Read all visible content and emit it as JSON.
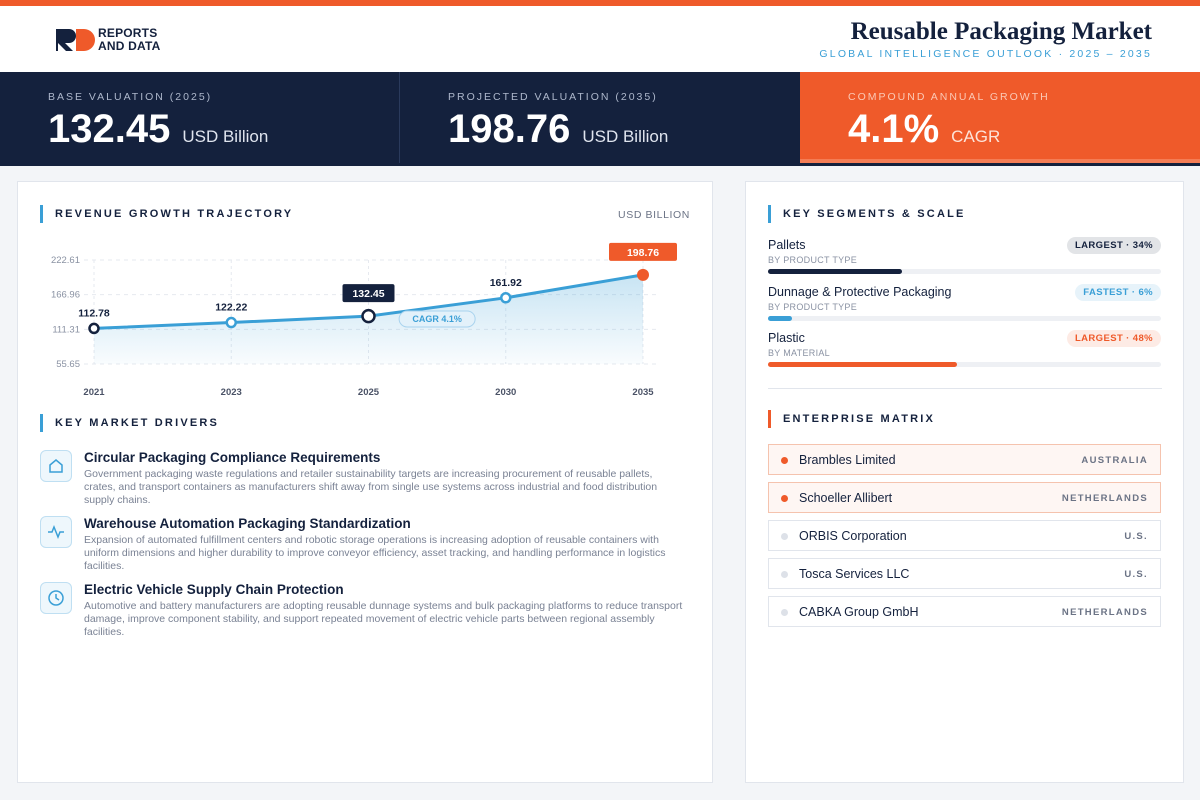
{
  "header": {
    "logo": [
      "REPORTS",
      "AND DATA"
    ],
    "title": "Reusable Packaging Market",
    "subtitle": "GLOBAL INTELLIGENCE OUTLOOK · 2025 – 2035"
  },
  "kpis": [
    {
      "label": "BASE VALUATION (2025)",
      "value": 132.45,
      "unit": "USD Billion"
    },
    {
      "label": "PROJECTED VALUATION (2035)",
      "value": 198.76,
      "unit": "USD Billion"
    },
    {
      "label": "COMPOUND ANNUAL GROWTH",
      "value": "4.1%",
      "unit": "CAGR"
    }
  ],
  "chart_data": {
    "type": "line",
    "title": "REVENUE GROWTH TRAJECTORY",
    "unit_label": "USD BILLION",
    "categories": [
      "2021",
      "2023",
      "2025",
      "2030",
      "2035"
    ],
    "values": [
      112.78,
      122.22,
      132.45,
      161.92,
      198.76
    ],
    "color": "#3a9fd6",
    "ylim": [
      55.65,
      222.61
    ],
    "yticks": [
      55.65,
      111.31,
      166.96,
      222.61
    ],
    "grid": true,
    "annotation": "CAGR 4.1%"
  },
  "drivers": {
    "title": "KEY MARKET DRIVERS",
    "items": [
      {
        "title": "Circular Packaging Compliance Requirements",
        "text": "Government packaging waste regulations and retailer sustainability targets are increasing procurement of reusable pallets, crates, and transport containers as manufacturers shift away from single use systems across industrial and food distribution supply chains."
      },
      {
        "title": "Warehouse Automation Packaging Standardization",
        "text": "Expansion of automated fulfillment centers and robotic storage operations is increasing adoption of reusable containers with uniform dimensions and higher durability to improve conveyor efficiency, asset tracking, and handling performance in logistics facilities."
      },
      {
        "title": "Electric Vehicle Supply Chain Protection",
        "text": "Automotive and battery manufacturers are adopting reusable dunnage systems and bulk packaging platforms to reduce transport damage, improve component stability, and support repeated movement of electric vehicle parts between regional assembly facilities."
      }
    ]
  },
  "segments": {
    "title": "KEY SEGMENTS & SCALE",
    "xlim": [
      0,
      100
    ],
    "items": [
      {
        "name": "Pallets",
        "group": "BY PRODUCT TYPE",
        "badge": "LARGEST · 34%",
        "share": 34,
        "color": "#14213d"
      },
      {
        "name": "Dunnage & Protective Packaging",
        "group": "BY PRODUCT TYPE",
        "badge": "FASTEST · 6%",
        "share": 6,
        "color": "#3a9fd6"
      },
      {
        "name": "Plastic",
        "group": "BY MATERIAL",
        "badge": "LARGEST · 48%",
        "share": 48,
        "color": "#ef5a2a"
      }
    ]
  },
  "enterprises": {
    "title": "ENTERPRISE MATRIX",
    "items": [
      {
        "name": "Brambles Limited",
        "country": "AUSTRALIA",
        "highlight": true
      },
      {
        "name": "Schoeller Allibert",
        "country": "NETHERLANDS",
        "highlight": true
      },
      {
        "name": "ORBIS Corporation",
        "country": "U.S.",
        "highlight": false
      },
      {
        "name": "Tosca Services LLC",
        "country": "U.S.",
        "highlight": false
      },
      {
        "name": "CABKA Group GmbH",
        "country": "NETHERLANDS",
        "highlight": false
      }
    ]
  }
}
